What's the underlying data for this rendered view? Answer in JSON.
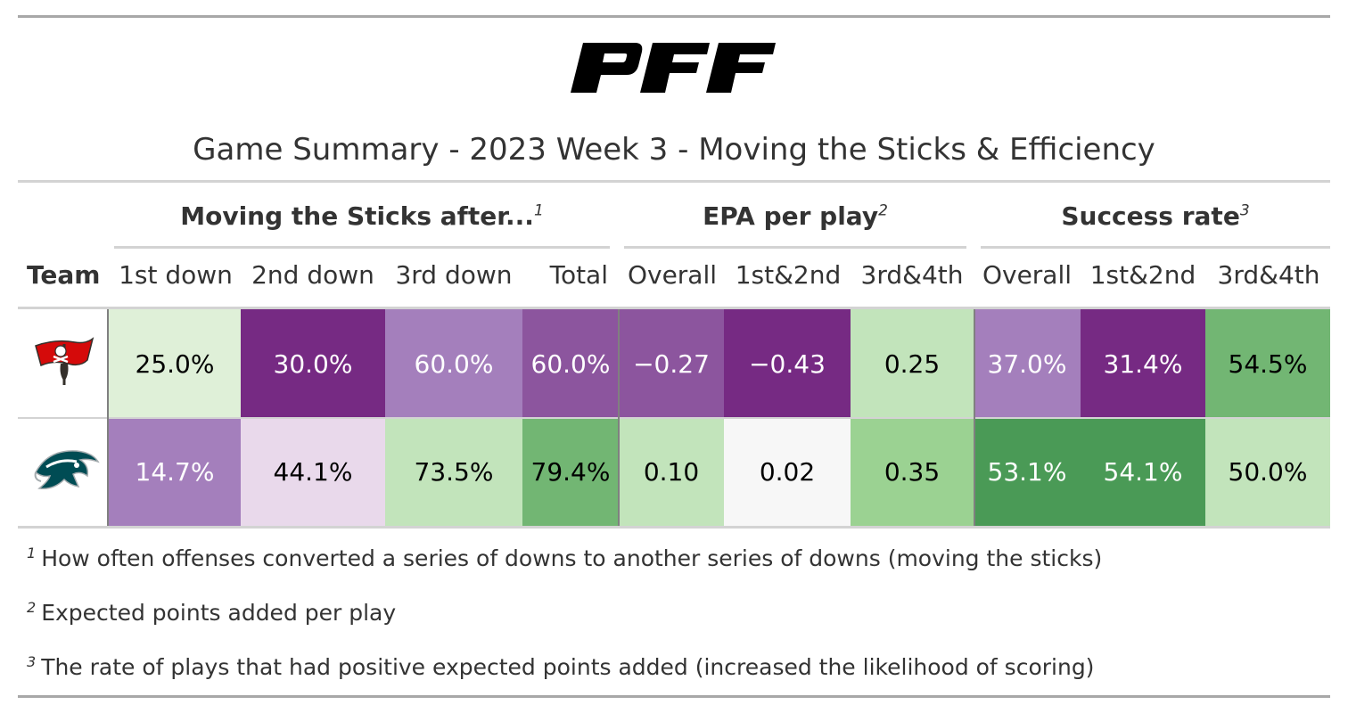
{
  "header": {
    "logo_text": "PFF",
    "title": "Game Summary - 2023 Week 3 - Moving the Sticks & Efficiency"
  },
  "spanners": [
    {
      "label": "Moving the Sticks after...",
      "note": "1"
    },
    {
      "label": "EPA per play",
      "note": "2"
    },
    {
      "label": "Success rate",
      "note": "3"
    }
  ],
  "columns": [
    "Team",
    "1st down",
    "2nd down",
    "3rd down",
    "Total",
    "Overall",
    "1st&2nd",
    "3rd&4th",
    "Overall",
    "1st&2nd",
    "3rd&4th"
  ],
  "teams": [
    {
      "logo": "buccaneers-logo"
    },
    {
      "logo": "eagles-logo"
    }
  ],
  "chart_data": {
    "type": "table",
    "title": "Game Summary - 2023 Week 3 - Moving the Sticks & Efficiency",
    "rows": [
      {
        "team": "buccaneers-logo",
        "cells": [
          {
            "text": "25.0%",
            "bg": "#dff0d8",
            "fg": "#000000"
          },
          {
            "text": "30.0%",
            "bg": "#762a83",
            "fg": "#ffffff"
          },
          {
            "text": "60.0%",
            "bg": "#a47fbc",
            "fg": "#ffffff"
          },
          {
            "text": "60.0%",
            "bg": "#8c559e",
            "fg": "#ffffff"
          },
          {
            "text": "−0.27",
            "bg": "#8c559e",
            "fg": "#ffffff"
          },
          {
            "text": "−0.43",
            "bg": "#762a83",
            "fg": "#ffffff"
          },
          {
            "text": "0.25",
            "bg": "#c2e4bb",
            "fg": "#000000"
          },
          {
            "text": "37.0%",
            "bg": "#a47fbc",
            "fg": "#ffffff"
          },
          {
            "text": "31.4%",
            "bg": "#762a83",
            "fg": "#ffffff"
          },
          {
            "text": "54.5%",
            "bg": "#72b673",
            "fg": "#000000"
          }
        ]
      },
      {
        "team": "eagles-logo",
        "cells": [
          {
            "text": "14.7%",
            "bg": "#a47fbc",
            "fg": "#ffffff"
          },
          {
            "text": "44.1%",
            "bg": "#e9d9eb",
            "fg": "#000000"
          },
          {
            "text": "73.5%",
            "bg": "#c2e4bb",
            "fg": "#000000"
          },
          {
            "text": "79.4%",
            "bg": "#72b673",
            "fg": "#000000"
          },
          {
            "text": "0.10",
            "bg": "#c2e4bb",
            "fg": "#000000"
          },
          {
            "text": "0.02",
            "bg": "#f7f7f7",
            "fg": "#000000"
          },
          {
            "text": "0.35",
            "bg": "#9bd292",
            "fg": "#000000"
          },
          {
            "text": "53.1%",
            "bg": "#4a9a56",
            "fg": "#ffffff"
          },
          {
            "text": "54.1%",
            "bg": "#4a9a56",
            "fg": "#ffffff"
          },
          {
            "text": "50.0%",
            "bg": "#c2e4bb",
            "fg": "#000000"
          }
        ]
      }
    ]
  },
  "footnotes": [
    {
      "mark": "1",
      "text": "How often offenses converted a series of downs to another series of downs (moving the sticks)"
    },
    {
      "mark": "2",
      "text": "Expected points added per play"
    },
    {
      "mark": "3",
      "text": "The rate of plays that had positive expected points added (increased the likelihood of scoring)"
    }
  ]
}
